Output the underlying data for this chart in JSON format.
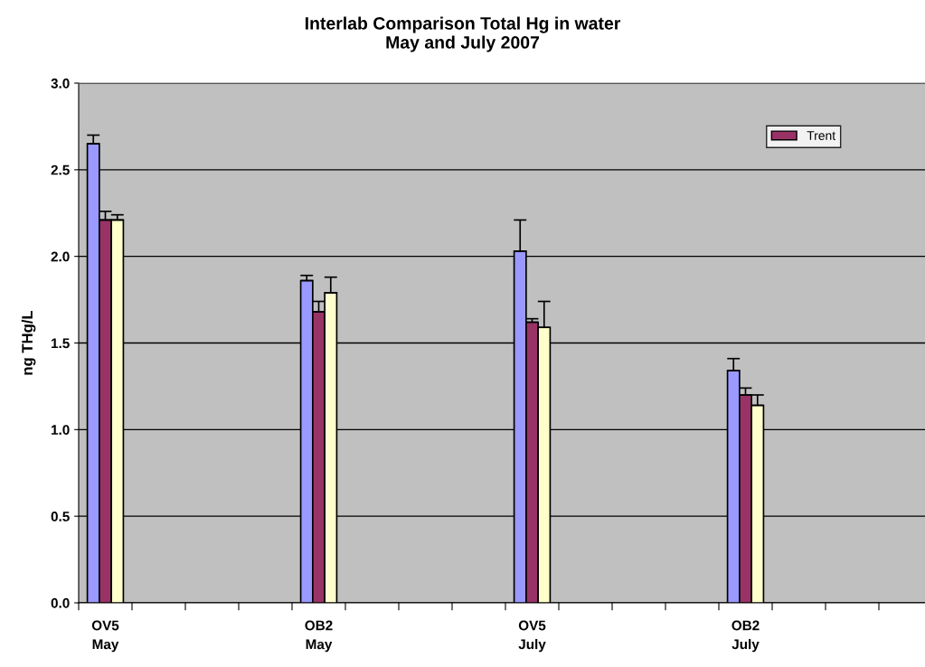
{
  "chart_data": {
    "type": "bar",
    "title": "Interlab Comparison Total Hg in water\nMay and July 2007",
    "ylabel": "ng THg/L",
    "categories": [
      "OV5\nMay",
      null,
      null,
      null,
      "OB2\nMay",
      null,
      null,
      null,
      "OV5\nJuly",
      null,
      null,
      null,
      "OB2\nJuly",
      null,
      null,
      null
    ],
    "series": [
      {
        "color": "#9999ff",
        "values": [
          2.65,
          null,
          null,
          null,
          1.86,
          null,
          null,
          null,
          2.03,
          null,
          null,
          null,
          1.34,
          null,
          null,
          null
        ],
        "errors": [
          [
            2.65,
            2.7
          ],
          null,
          null,
          null,
          [
            1.86,
            1.89
          ],
          null,
          null,
          null,
          [
            2.03,
            2.21
          ],
          null,
          null,
          null,
          [
            1.34,
            1.41
          ],
          null,
          null,
          null
        ]
      },
      {
        "name": "Trent",
        "color": "#993366",
        "values": [
          2.21,
          null,
          null,
          null,
          1.68,
          null,
          null,
          null,
          1.62,
          null,
          null,
          null,
          1.2,
          null,
          null,
          null
        ],
        "errors": [
          [
            2.21,
            2.26
          ],
          null,
          null,
          null,
          [
            1.68,
            1.74
          ],
          null,
          null,
          null,
          [
            1.62,
            1.64
          ],
          null,
          null,
          null,
          [
            1.2,
            1.24
          ],
          null,
          null,
          null
        ]
      },
      {
        "color": "#ffffcc",
        "values": [
          2.21,
          null,
          null,
          null,
          1.79,
          null,
          null,
          null,
          1.59,
          null,
          null,
          null,
          1.14,
          null,
          null,
          null
        ],
        "errors": [
          [
            2.21,
            2.24
          ],
          null,
          null,
          null,
          [
            1.79,
            1.88
          ],
          null,
          null,
          null,
          [
            1.59,
            1.74
          ],
          null,
          null,
          null,
          [
            1.14,
            1.2
          ],
          null,
          null,
          null
        ]
      }
    ],
    "ylim": [
      0,
      3
    ],
    "yticks": [
      {
        "value": 0,
        "label": "0.0"
      },
      {
        "value": 0.5,
        "label": "0.5"
      },
      {
        "value": 1,
        "label": "1.0"
      },
      {
        "value": 1.5,
        "label": "1.5"
      },
      {
        "value": 2,
        "label": "2.0"
      },
      {
        "value": 2.5,
        "label": "2.5"
      },
      {
        "value": 3,
        "label": "3.0"
      }
    ],
    "grid": "y",
    "legend": "top right"
  }
}
